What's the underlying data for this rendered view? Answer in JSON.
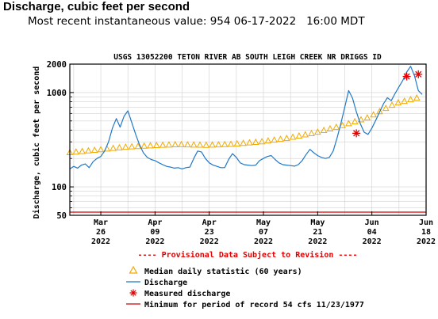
{
  "header": {
    "title": "Discharge, cubic feet per second",
    "subtitle": "Most recent instantaneous value: 954 06-17-2022   16:00 MDT"
  },
  "chart_data": {
    "type": "line",
    "title": "USGS 13052200 TETON RIVER AB SOUTH LEIGH CREEK NR DRIGGS ID",
    "ylabel": "Discharge, cubic feet per second",
    "yscale": "log",
    "ylim": [
      50,
      2000
    ],
    "xlim": [
      "2022-03-18",
      "2022-06-18"
    ],
    "y_ticks": [
      50,
      100,
      1000,
      2000
    ],
    "x_ticks": [
      {
        "date": "2022-03-26",
        "month": "Mar",
        "day": "26",
        "year": "2022"
      },
      {
        "date": "2022-04-09",
        "month": "Apr",
        "day": "09",
        "year": "2022"
      },
      {
        "date": "2022-04-23",
        "month": "Apr",
        "day": "23",
        "year": "2022"
      },
      {
        "date": "2022-05-07",
        "month": "May",
        "day": "07",
        "year": "2022"
      },
      {
        "date": "2022-05-21",
        "month": "May",
        "day": "21",
        "year": "2022"
      },
      {
        "date": "2022-06-04",
        "month": "Jun",
        "day": "04",
        "year": "2022"
      },
      {
        "date": "2022-06-18",
        "month": "Jun",
        "day": "18",
        "year": "2022"
      }
    ],
    "provisional_note": "---- Provisional Data Subject to Revision ----",
    "legend": {
      "median": "Median daily statistic (60 years)",
      "discharge": "Discharge",
      "measured": "Measured discharge",
      "minimum": "Minimum for period of record 54 cfs 11/23/1977"
    },
    "colors": {
      "discharge": "#1f78c8",
      "median": "#f2a900",
      "measured": "#e00000",
      "minimum": "#cc0000",
      "note": "#e00000"
    },
    "grid": true,
    "series": [
      {
        "name": "Discharge",
        "points": [
          [
            "2022-03-18",
            155
          ],
          [
            "2022-03-19",
            165
          ],
          [
            "2022-03-20",
            158
          ],
          [
            "2022-03-21",
            170
          ],
          [
            "2022-03-22",
            175
          ],
          [
            "2022-03-23",
            160
          ],
          [
            "2022-03-24",
            185
          ],
          [
            "2022-03-25",
            200
          ],
          [
            "2022-03-26",
            210
          ],
          [
            "2022-03-27",
            240
          ],
          [
            "2022-03-28",
            300
          ],
          [
            "2022-03-29",
            420
          ],
          [
            "2022-03-30",
            530
          ],
          [
            "2022-03-31",
            430
          ],
          [
            "2022-04-01",
            560
          ],
          [
            "2022-04-02",
            640
          ],
          [
            "2022-04-03",
            480
          ],
          [
            "2022-04-04",
            360
          ],
          [
            "2022-04-05",
            280
          ],
          [
            "2022-04-06",
            230
          ],
          [
            "2022-04-07",
            205
          ],
          [
            "2022-04-08",
            195
          ],
          [
            "2022-04-09",
            190
          ],
          [
            "2022-04-10",
            180
          ],
          [
            "2022-04-11",
            172
          ],
          [
            "2022-04-12",
            165
          ],
          [
            "2022-04-13",
            162
          ],
          [
            "2022-04-14",
            158
          ],
          [
            "2022-04-15",
            160
          ],
          [
            "2022-04-16",
            155
          ],
          [
            "2022-04-17",
            160
          ],
          [
            "2022-04-18",
            162
          ],
          [
            "2022-04-19",
            200
          ],
          [
            "2022-04-20",
            240
          ],
          [
            "2022-04-21",
            235
          ],
          [
            "2022-04-22",
            200
          ],
          [
            "2022-04-23",
            180
          ],
          [
            "2022-04-24",
            170
          ],
          [
            "2022-04-25",
            165
          ],
          [
            "2022-04-26",
            160
          ],
          [
            "2022-04-27",
            160
          ],
          [
            "2022-04-28",
            195
          ],
          [
            "2022-04-29",
            225
          ],
          [
            "2022-04-30",
            205
          ],
          [
            "2022-05-01",
            180
          ],
          [
            "2022-05-02",
            172
          ],
          [
            "2022-05-03",
            170
          ],
          [
            "2022-05-04",
            168
          ],
          [
            "2022-05-05",
            170
          ],
          [
            "2022-05-06",
            190
          ],
          [
            "2022-05-07",
            200
          ],
          [
            "2022-05-08",
            210
          ],
          [
            "2022-05-09",
            215
          ],
          [
            "2022-05-10",
            195
          ],
          [
            "2022-05-11",
            180
          ],
          [
            "2022-05-12",
            172
          ],
          [
            "2022-05-13",
            170
          ],
          [
            "2022-05-14",
            168
          ],
          [
            "2022-05-15",
            166
          ],
          [
            "2022-05-16",
            172
          ],
          [
            "2022-05-17",
            190
          ],
          [
            "2022-05-18",
            220
          ],
          [
            "2022-05-19",
            250
          ],
          [
            "2022-05-20",
            230
          ],
          [
            "2022-05-21",
            215
          ],
          [
            "2022-05-22",
            205
          ],
          [
            "2022-05-23",
            200
          ],
          [
            "2022-05-24",
            205
          ],
          [
            "2022-05-25",
            240
          ],
          [
            "2022-05-26",
            330
          ],
          [
            "2022-05-27",
            470
          ],
          [
            "2022-05-28",
            700
          ],
          [
            "2022-05-29",
            1050
          ],
          [
            "2022-05-30",
            870
          ],
          [
            "2022-05-31",
            620
          ],
          [
            "2022-06-01",
            470
          ],
          [
            "2022-06-02",
            380
          ],
          [
            "2022-06-03",
            360
          ],
          [
            "2022-06-04",
            420
          ],
          [
            "2022-06-05",
            510
          ],
          [
            "2022-06-06",
            620
          ],
          [
            "2022-06-07",
            760
          ],
          [
            "2022-06-08",
            880
          ],
          [
            "2022-06-09",
            820
          ],
          [
            "2022-06-10",
            980
          ],
          [
            "2022-06-11",
            1150
          ],
          [
            "2022-06-12",
            1350
          ],
          [
            "2022-06-13",
            1650
          ],
          [
            "2022-06-14",
            1900
          ],
          [
            "2022-06-15",
            1500
          ],
          [
            "2022-06-16",
            1050
          ],
          [
            "2022-06-17",
            954
          ]
        ]
      },
      {
        "name": "Median daily statistic (60 years)",
        "points": [
          [
            "2022-03-18",
            230
          ],
          [
            "2022-03-25",
            245
          ],
          [
            "2022-04-01",
            262
          ],
          [
            "2022-04-08",
            272
          ],
          [
            "2022-04-15",
            280
          ],
          [
            "2022-04-22",
            275
          ],
          [
            "2022-04-29",
            282
          ],
          [
            "2022-05-06",
            298
          ],
          [
            "2022-05-13",
            325
          ],
          [
            "2022-05-20",
            370
          ],
          [
            "2022-05-27",
            440
          ],
          [
            "2022-06-03",
            540
          ],
          [
            "2022-06-10",
            760
          ],
          [
            "2022-06-17",
            900
          ]
        ]
      },
      {
        "name": "Measured discharge",
        "points": [
          [
            "2022-05-31",
            370
          ],
          [
            "2022-06-13",
            1480
          ],
          [
            "2022-06-16",
            1560
          ]
        ]
      },
      {
        "name": "Minimum for period of record 54 cfs 11/23/1977",
        "points": [
          [
            "2022-03-18",
            54
          ],
          [
            "2022-06-18",
            54
          ]
        ]
      }
    ]
  }
}
